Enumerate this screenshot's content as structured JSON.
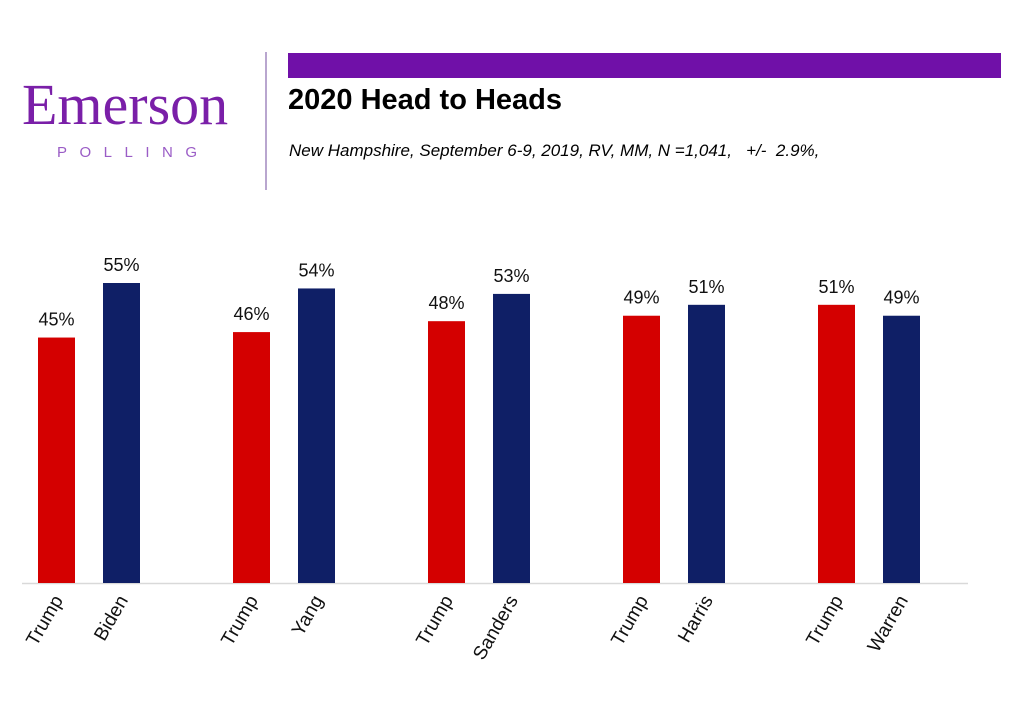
{
  "logo": {
    "word": "Emerson",
    "sub": "POLLING"
  },
  "header": {
    "title": "2020 Head to Heads",
    "subtitle": "New Hampshire, September 6-9, 2019, RV, MM, N =1,041,   +/-  2.9%,"
  },
  "colors": {
    "brand_purple": "#7010a8",
    "trump_red": "#d40000",
    "democrat_navy": "#0f1f66"
  },
  "chart_data": {
    "type": "bar",
    "title": "2020 Head to Heads",
    "ylim": [
      0,
      55
    ],
    "grid": false,
    "legend": "none",
    "groups": [
      {
        "bars": [
          {
            "label": "Trump",
            "value": 45,
            "text": "45%",
            "party": "R"
          },
          {
            "label": "Biden",
            "value": 55,
            "text": "55%",
            "party": "D"
          }
        ]
      },
      {
        "bars": [
          {
            "label": "Trump",
            "value": 46,
            "text": "46%",
            "party": "R"
          },
          {
            "label": "Yang",
            "value": 54,
            "text": "54%",
            "party": "D"
          }
        ]
      },
      {
        "bars": [
          {
            "label": "Trump",
            "value": 48,
            "text": "48%",
            "party": "R"
          },
          {
            "label": "Sanders",
            "value": 53,
            "text": "53%",
            "party": "D"
          }
        ]
      },
      {
        "bars": [
          {
            "label": "Trump",
            "value": 49,
            "text": "49%",
            "party": "R"
          },
          {
            "label": "Harris",
            "value": 51,
            "text": "51%",
            "party": "D"
          }
        ]
      },
      {
        "bars": [
          {
            "label": "Trump",
            "value": 51,
            "text": "51%",
            "party": "R"
          },
          {
            "label": "Warren",
            "value": 49,
            "text": "49%",
            "party": "D"
          }
        ]
      }
    ]
  }
}
